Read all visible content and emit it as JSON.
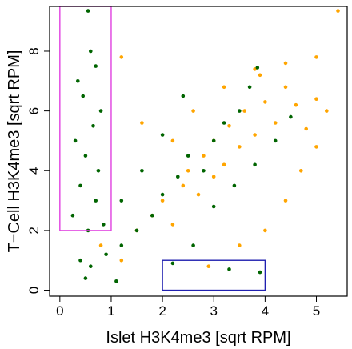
{
  "chart_data": {
    "type": "scatter",
    "xlabel": "Islet H3K4me3 [sqrt RPM]",
    "ylabel": "T−Cell H3K4me3 [sqrt RPM]",
    "xlim": [
      -0.2,
      5.6
    ],
    "ylim": [
      -0.2,
      9.5
    ],
    "x_ticks": [
      0,
      1,
      2,
      3,
      4,
      5
    ],
    "y_ticks": [
      0,
      2,
      4,
      6,
      8
    ],
    "grid": false,
    "legend": "none",
    "series": [
      {
        "color": "#FFA500",
        "points": [
          [
            0.8,
            1.5
          ],
          [
            1.2,
            1.0
          ],
          [
            1.5,
            2.0
          ],
          [
            1.8,
            2.5
          ],
          [
            2.0,
            3.0
          ],
          [
            2.2,
            2.2
          ],
          [
            2.4,
            3.5
          ],
          [
            2.5,
            4.0
          ],
          [
            2.7,
            3.2
          ],
          [
            2.8,
            4.5
          ],
          [
            3.0,
            3.8
          ],
          [
            3.0,
            5.0
          ],
          [
            3.2,
            4.2
          ],
          [
            3.3,
            5.5
          ],
          [
            3.5,
            4.8
          ],
          [
            3.6,
            6.0
          ],
          [
            3.8,
            5.2
          ],
          [
            4.0,
            6.3
          ],
          [
            4.2,
            5.6
          ],
          [
            4.4,
            6.8
          ],
          [
            4.6,
            6.2
          ],
          [
            4.8,
            5.4
          ],
          [
            5.0,
            6.4
          ],
          [
            5.0,
            7.8
          ],
          [
            5.2,
            6.0
          ],
          [
            5.42,
            9.35
          ],
          [
            3.9,
            7.2
          ],
          [
            3.2,
            6.8
          ],
          [
            2.6,
            6.0
          ],
          [
            2.2,
            5.0
          ],
          [
            1.2,
            7.8
          ],
          [
            1.6,
            5.6
          ],
          [
            2.9,
            0.8
          ],
          [
            3.5,
            1.5
          ],
          [
            4.0,
            2.0
          ],
          [
            4.4,
            3.0
          ],
          [
            4.7,
            4.0
          ],
          [
            5.0,
            4.8
          ],
          [
            3.8,
            7.4
          ],
          [
            4.4,
            7.6
          ]
        ]
      },
      {
        "color": "#006400",
        "points": [
          [
            0.25,
            2.5
          ],
          [
            0.3,
            5.0
          ],
          [
            0.35,
            7.0
          ],
          [
            0.4,
            3.5
          ],
          [
            0.45,
            6.5
          ],
          [
            0.5,
            4.5
          ],
          [
            0.55,
            2.0
          ],
          [
            0.6,
            8.0
          ],
          [
            0.65,
            5.5
          ],
          [
            0.7,
            3.0
          ],
          [
            0.7,
            7.5
          ],
          [
            0.75,
            4.0
          ],
          [
            0.8,
            6.0
          ],
          [
            0.85,
            2.2
          ],
          [
            0.55,
            9.35
          ],
          [
            0.4,
            1.0
          ],
          [
            0.6,
            0.8
          ],
          [
            0.9,
            1.2
          ],
          [
            1.2,
            1.5
          ],
          [
            1.5,
            2.0
          ],
          [
            1.8,
            2.5
          ],
          [
            2.0,
            3.2
          ],
          [
            2.3,
            3.8
          ],
          [
            2.5,
            4.5
          ],
          [
            2.8,
            4.0
          ],
          [
            3.0,
            5.0
          ],
          [
            3.2,
            5.6
          ],
          [
            3.5,
            6.0
          ],
          [
            3.7,
            6.8
          ],
          [
            3.85,
            7.45
          ],
          [
            2.4,
            6.5
          ],
          [
            2.0,
            5.2
          ],
          [
            1.6,
            4.0
          ],
          [
            1.2,
            3.0
          ],
          [
            3.0,
            2.8
          ],
          [
            3.4,
            3.5
          ],
          [
            3.8,
            4.2
          ],
          [
            4.2,
            5.0
          ],
          [
            4.5,
            5.8
          ],
          [
            2.2,
            0.9
          ],
          [
            2.6,
            1.5
          ],
          [
            3.3,
            0.7
          ],
          [
            3.9,
            0.6
          ],
          [
            1.1,
            0.3
          ],
          [
            0.5,
            0.4
          ]
        ]
      }
    ],
    "annotations": [
      {
        "type": "rect",
        "color": "#E040E0",
        "x": [
          0.0,
          1.0
        ],
        "y": [
          2.0,
          9.5
        ]
      },
      {
        "type": "rect",
        "color": "#2020B0",
        "x": [
          2.0,
          4.0
        ],
        "y": [
          0.0,
          1.0
        ]
      }
    ]
  }
}
